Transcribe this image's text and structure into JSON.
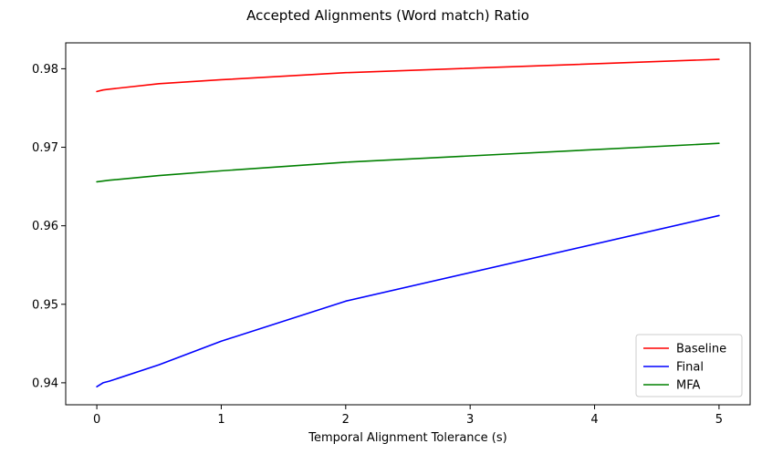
{
  "chart_data": {
    "type": "line",
    "title": "Accepted Alignments (Word match) Ratio",
    "xlabel": "Temporal Alignment Tolerance (s)",
    "ylabel": "",
    "xlim": [
      -0.25,
      5.25
    ],
    "ylim": [
      0.9372,
      0.9833
    ],
    "xticks": [
      0,
      1,
      2,
      3,
      4,
      5
    ],
    "yticks": [
      0.94,
      0.95,
      0.96,
      0.97,
      0.98
    ],
    "xtick_labels": [
      "0",
      "1",
      "2",
      "3",
      "4",
      "5"
    ],
    "ytick_labels": [
      "0.94",
      "0.95",
      "0.96",
      "0.97",
      "0.98"
    ],
    "grid": false,
    "legend_position": "lower-right",
    "series": [
      {
        "name": "Baseline",
        "color": "#ff0000",
        "x": [
          0,
          0.05,
          0.1,
          0.5,
          1,
          2,
          5
        ],
        "y": [
          0.9771,
          0.9773,
          0.9774,
          0.9781,
          0.9786,
          0.9795,
          0.9812
        ]
      },
      {
        "name": "Final",
        "color": "#0000ff",
        "x": [
          0,
          0.05,
          0.1,
          0.5,
          1,
          2,
          5
        ],
        "y": [
          0.9395,
          0.94,
          0.9402,
          0.9423,
          0.9453,
          0.9504,
          0.9613
        ]
      },
      {
        "name": "MFA",
        "color": "#008000",
        "x": [
          0,
          0.05,
          0.1,
          0.5,
          1,
          2,
          5
        ],
        "y": [
          0.9656,
          0.9657,
          0.9658,
          0.9664,
          0.967,
          0.9681,
          0.9705
        ]
      }
    ]
  }
}
